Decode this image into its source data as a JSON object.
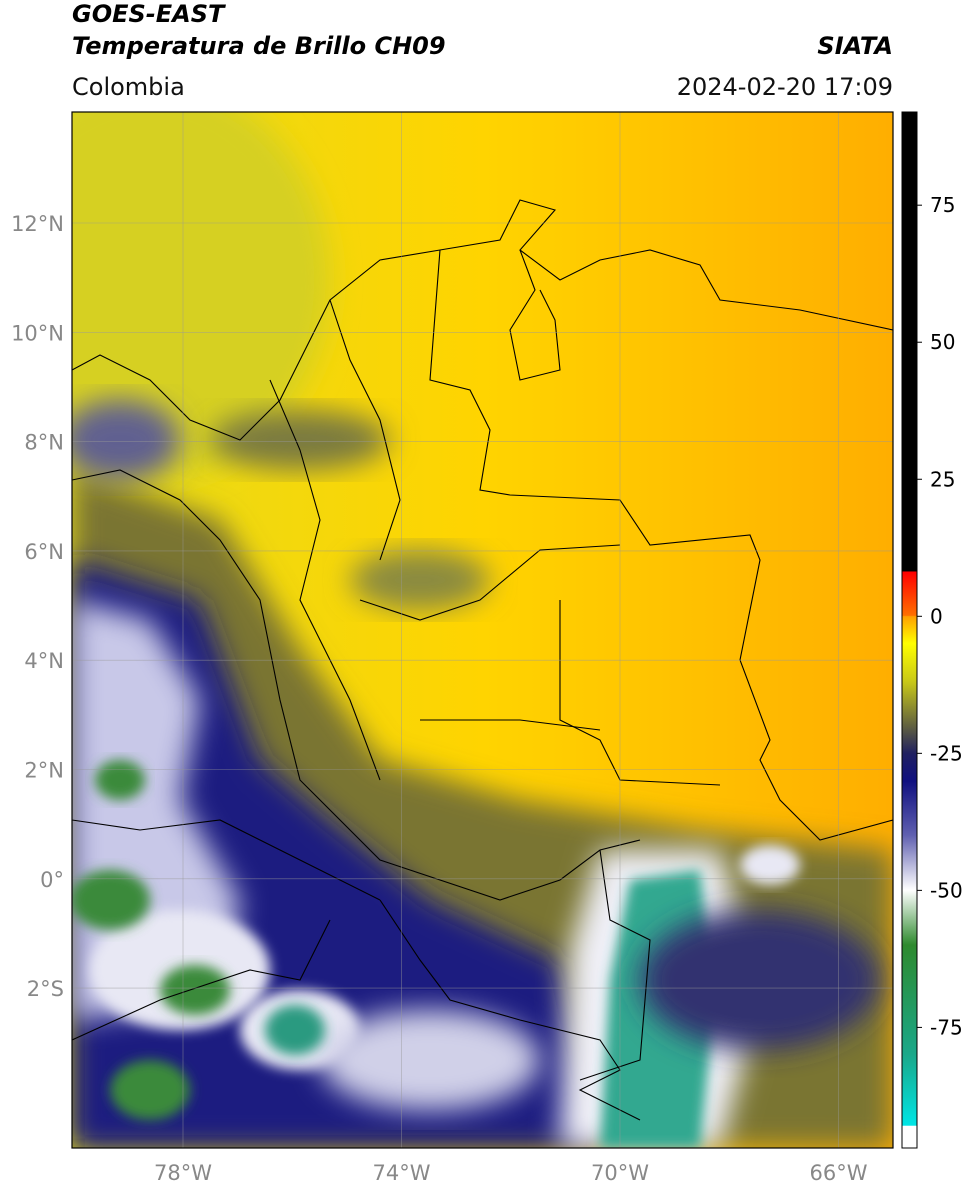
{
  "header": {
    "title": "GOES-EAST",
    "subtitle": "Temperatura de Brillo CH09",
    "source": "SIATA",
    "region": "Colombia",
    "datetime": "2024-02-20 17:09"
  },
  "map": {
    "lat_ticks": [
      "12°N",
      "10°N",
      "8°N",
      "6°N",
      "4°N",
      "2°N",
      "0°",
      "2°S"
    ],
    "lon_ticks": [
      "78°W",
      "74°W",
      "70°W",
      "66°W"
    ]
  },
  "colorbar": {
    "limits": [
      -97,
      92
    ],
    "ticks": [
      75,
      50,
      25,
      0,
      -25,
      -50,
      -75
    ]
  }
}
